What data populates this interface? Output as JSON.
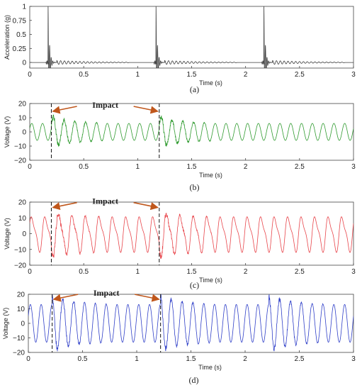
{
  "chart_data": [
    {
      "type": "line",
      "panel_label": "(a)",
      "xlabel": "Time (s)",
      "ylabel": "Acceleration (g)",
      "xlim": [
        0,
        3
      ],
      "ylim": [
        -0.1,
        1
      ],
      "xticks": [
        "0",
        "0.5",
        "1",
        "1.5",
        "2",
        "2.5",
        "3"
      ],
      "yticks": [
        "0",
        "0.25",
        "0.5",
        "0.75",
        "1"
      ],
      "grid": false,
      "color": "#3a3a3a",
      "impact_times": [
        0.17,
        1.17,
        2.17
      ],
      "peak": 1.0
    },
    {
      "type": "line",
      "panel_label": "(b)",
      "xlabel": "Time (s)",
      "ylabel": "Voltage (V)",
      "xlim": [
        0,
        3
      ],
      "ylim": [
        -20,
        20
      ],
      "xticks": [
        "0",
        "0.5",
        "1",
        "1.5",
        "2",
        "2.5",
        "3"
      ],
      "yticks": [
        "−20",
        "−10",
        "0",
        "10",
        "20"
      ],
      "grid": false,
      "color": "#2e9a2e",
      "impact_times": [
        0.2,
        1.2
      ],
      "annotation": "Impact",
      "baseline_amplitude": 6,
      "impact_amplitude": 11,
      "frequency_hz": 10
    },
    {
      "type": "line",
      "panel_label": "(c)",
      "xlabel": "Time (s)",
      "ylabel": "Voltage (V)",
      "xlim": [
        0,
        3
      ],
      "ylim": [
        -20,
        20
      ],
      "xticks": [
        "0",
        "0.5",
        "1",
        "1.5",
        "2",
        "2.5",
        "3"
      ],
      "yticks": [
        "−20",
        "−10",
        "0",
        "10",
        "20"
      ],
      "grid": false,
      "color": "#e8444a",
      "impact_times": [
        0.2,
        1.2
      ],
      "annotation": "Impact",
      "baseline_amplitude": 10,
      "impact_amplitude": 13,
      "frequency_hz": 8
    },
    {
      "type": "line",
      "panel_label": "(d)",
      "xlabel": "Time (s)",
      "ylabel": "Voltage (V)",
      "xlim": [
        0,
        3
      ],
      "ylim": [
        -20,
        20
      ],
      "xticks": [
        "0",
        "0.5",
        "1",
        "1.5",
        "2",
        "2.5",
        "3"
      ],
      "yticks": [
        "−20",
        "−10",
        "0",
        "10",
        "20"
      ],
      "grid": false,
      "color": "#2f3fc8",
      "impact_times": [
        0.22,
        1.22,
        2.22
      ],
      "annotation": "Impact",
      "baseline_amplitude": 13,
      "impact_amplitude": 19,
      "frequency_hz": 10
    }
  ]
}
